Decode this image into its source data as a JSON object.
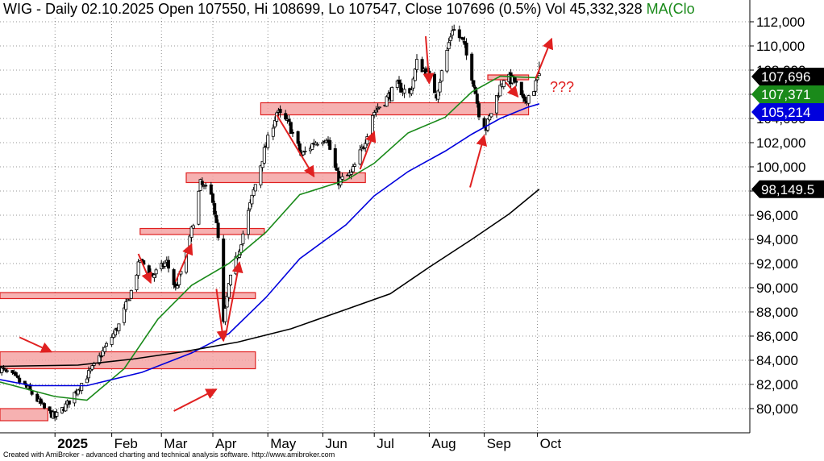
{
  "header": {
    "symbol": "WIG",
    "info": "- Daily 02.10.2025 Open 107550, Hi 108699, Lo 107547, Close 107696 (0.5%) Vol 45,332,328",
    "ma_label": "MA(Clo"
  },
  "footer": {
    "credit": "Created with AmiBroker - advanced charting and technical analysis software. http://www.amibroker.com"
  },
  "colors": {
    "ma_green": "#1a8a1a",
    "ma_blue": "#0000dd",
    "ma_black": "#000000",
    "zone_fill": "#f5a3a3",
    "zone_edge": "#e02020",
    "arrow": "#e02020"
  },
  "chart_data": {
    "type": "candlestick",
    "title": "WIG - Daily 02.10.2025",
    "ylim": [
      78000,
      113000
    ],
    "grid": true,
    "y_ticks": [
      "112,000",
      "110,000",
      "108,000",
      "106,000",
      "104,000",
      "102,000",
      "100,000",
      "98,000",
      "96,000",
      "94,000",
      "92,000",
      "90,000",
      "88,000",
      "86,000",
      "84,000",
      "82,000",
      "80,000"
    ],
    "x_ticks": [
      {
        "label": "2025",
        "date": "2025-01-02",
        "bold": true
      },
      {
        "label": "Feb",
        "date": "2025-02-03"
      },
      {
        "label": "Mar",
        "date": "2025-03-03"
      },
      {
        "label": "Apr",
        "date": "2025-04-01"
      },
      {
        "label": "May",
        "date": "2025-05-02"
      },
      {
        "label": "Jun",
        "date": "2025-06-02"
      },
      {
        "label": "Jul",
        "date": "2025-07-01"
      },
      {
        "label": "Aug",
        "date": "2025-08-01"
      },
      {
        "label": "Sep",
        "date": "2025-09-01"
      },
      {
        "label": "Oct",
        "date": "2025-10-01"
      }
    ],
    "last_bar": {
      "date": "2025-10-02",
      "open": 107550,
      "high": 108699,
      "low": 107547,
      "close": 107696,
      "change_pct": 0.5,
      "volume": 45332328
    },
    "price_path": [
      [
        "2024-12-02",
        83300
      ],
      [
        "2024-12-10",
        82600
      ],
      [
        "2024-12-18",
        81600
      ],
      [
        "2024-12-27",
        80000
      ],
      [
        "2025-01-02",
        79300
      ],
      [
        "2025-01-09",
        80400
      ],
      [
        "2025-01-16",
        81900
      ],
      [
        "2025-01-24",
        83500
      ],
      [
        "2025-01-31",
        85200
      ],
      [
        "2025-02-07",
        86900
      ],
      [
        "2025-02-14",
        89700
      ],
      [
        "2025-02-19",
        92300
      ],
      [
        "2025-02-26",
        91000
      ],
      [
        "2025-03-06",
        92100
      ],
      [
        "2025-03-11",
        89900
      ],
      [
        "2025-03-18",
        93200
      ],
      [
        "2025-03-25",
        98600
      ],
      [
        "2025-04-01",
        97400
      ],
      [
        "2025-04-04",
        94000
      ],
      [
        "2025-04-07",
        87000
      ],
      [
        "2025-04-10",
        90200
      ],
      [
        "2025-04-16",
        93300
      ],
      [
        "2025-04-24",
        98000
      ],
      [
        "2025-04-30",
        101300
      ],
      [
        "2025-05-07",
        104500
      ],
      [
        "2025-05-14",
        103500
      ],
      [
        "2025-05-21",
        100900
      ],
      [
        "2025-05-28",
        102000
      ],
      [
        "2025-06-04",
        102500
      ],
      [
        "2025-06-11",
        98800
      ],
      [
        "2025-06-18",
        99400
      ],
      [
        "2025-06-25",
        101800
      ],
      [
        "2025-06-30",
        104400
      ],
      [
        "2025-07-07",
        105500
      ],
      [
        "2025-07-14",
        106700
      ],
      [
        "2025-07-21",
        106000
      ],
      [
        "2025-07-25",
        108600
      ],
      [
        "2025-07-30",
        107900
      ],
      [
        "2025-08-05",
        106000
      ],
      [
        "2025-08-11",
        109600
      ],
      [
        "2025-08-14",
        111500
      ],
      [
        "2025-08-20",
        110300
      ],
      [
        "2025-08-26",
        107000
      ],
      [
        "2025-08-29",
        104500
      ],
      [
        "2025-09-02",
        103200
      ],
      [
        "2025-09-08",
        105800
      ],
      [
        "2025-09-12",
        107400
      ],
      [
        "2025-09-18",
        107100
      ],
      [
        "2025-09-23",
        105300
      ],
      [
        "2025-09-29",
        106500
      ],
      [
        "2025-10-02",
        107696
      ]
    ],
    "series": [
      {
        "name": "MA",
        "color": "#1a8a1a",
        "last_value": 107371,
        "points": [
          [
            "2024-12-02",
            82200
          ],
          [
            "2025-01-02",
            81000
          ],
          [
            "2025-01-20",
            80700
          ],
          [
            "2025-02-10",
            83300
          ],
          [
            "2025-03-01",
            87400
          ],
          [
            "2025-03-20",
            90200
          ],
          [
            "2025-04-10",
            92000
          ],
          [
            "2025-05-01",
            94600
          ],
          [
            "2025-05-20",
            97700
          ],
          [
            "2025-06-15",
            98900
          ],
          [
            "2025-07-01",
            100300
          ],
          [
            "2025-07-20",
            102800
          ],
          [
            "2025-08-10",
            104100
          ],
          [
            "2025-08-25",
            106200
          ],
          [
            "2025-09-10",
            107500
          ],
          [
            "2025-09-25",
            107400
          ],
          [
            "2025-10-02",
            107371
          ]
        ]
      },
      {
        "name": "MA",
        "color": "#0000dd",
        "last_value": 105214,
        "points": [
          [
            "2024-12-02",
            82400
          ],
          [
            "2024-12-20",
            81900
          ],
          [
            "2025-01-20",
            81900
          ],
          [
            "2025-02-20",
            83000
          ],
          [
            "2025-03-20",
            84600
          ],
          [
            "2025-04-10",
            86200
          ],
          [
            "2025-05-01",
            89200
          ],
          [
            "2025-05-20",
            92400
          ],
          [
            "2025-06-15",
            95200
          ],
          [
            "2025-07-01",
            97600
          ],
          [
            "2025-07-20",
            99600
          ],
          [
            "2025-08-10",
            101300
          ],
          [
            "2025-08-25",
            102700
          ],
          [
            "2025-09-10",
            104000
          ],
          [
            "2025-09-25",
            104900
          ],
          [
            "2025-10-02",
            105214
          ]
        ]
      },
      {
        "name": "MA",
        "color": "#000000",
        "last_value": 98149.5,
        "points": [
          [
            "2024-12-02",
            83500
          ],
          [
            "2025-01-15",
            83600
          ],
          [
            "2025-02-15",
            84100
          ],
          [
            "2025-03-15",
            84700
          ],
          [
            "2025-04-15",
            85500
          ],
          [
            "2025-05-15",
            86600
          ],
          [
            "2025-06-15",
            88200
          ],
          [
            "2025-07-10",
            89500
          ],
          [
            "2025-08-01",
            91700
          ],
          [
            "2025-08-25",
            94000
          ],
          [
            "2025-09-15",
            96100
          ],
          [
            "2025-10-02",
            98149.5
          ]
        ]
      }
    ],
    "price_tags": [
      {
        "label": "107,696",
        "value": 107696,
        "style": "black"
      },
      {
        "label": "107,371",
        "value": 107371,
        "style": "green"
      },
      {
        "label": "105,214",
        "value": 105214,
        "style": "blue"
      },
      {
        "label": "98,149.5",
        "value": 98149.5,
        "style": "black"
      }
    ],
    "zones": [
      {
        "from": "2024-12-02",
        "to": "2024-12-29",
        "low": 79000,
        "high": 80000
      },
      {
        "from": "2024-12-02",
        "to": "2025-04-25",
        "low": 83300,
        "high": 84700
      },
      {
        "from": "2024-12-02",
        "to": "2025-04-25",
        "low": 89100,
        "high": 89600
      },
      {
        "from": "2025-02-19",
        "to": "2025-04-30",
        "low": 94400,
        "high": 94900
      },
      {
        "from": "2025-03-17",
        "to": "2025-06-26",
        "low": 98700,
        "high": 99500
      },
      {
        "from": "2025-04-28",
        "to": "2025-09-26",
        "low": 104300,
        "high": 105300
      },
      {
        "from": "2025-09-03",
        "to": "2025-09-26",
        "low": 107200,
        "high": 107600
      }
    ],
    "arrows": [
      {
        "x1": "2024-12-13",
        "y1": 85900,
        "x2": "2024-12-31",
        "y2": 84700
      },
      {
        "x1": "2025-03-10",
        "y1": 79800,
        "x2": "2025-04-03",
        "y2": 81600
      },
      {
        "x1": "2025-02-18",
        "y1": 92800,
        "x2": "2025-02-25",
        "y2": 90400
      },
      {
        "x1": "2025-03-11",
        "y1": 90500,
        "x2": "2025-03-20",
        "y2": 93600
      },
      {
        "x1": "2025-04-03",
        "y1": 89900,
        "x2": "2025-04-07",
        "y2": 85600
      },
      {
        "x1": "2025-04-08",
        "y1": 85900,
        "x2": "2025-04-16",
        "y2": 92100
      },
      {
        "x1": "2025-05-07",
        "y1": 104300,
        "x2": "2025-05-28",
        "y2": 99200
      },
      {
        "x1": "2025-06-23",
        "y1": 99800,
        "x2": "2025-07-01",
        "y2": 102900
      },
      {
        "x1": "2025-07-30",
        "y1": 110800,
        "x2": "2025-08-01",
        "y2": 106900
      },
      {
        "x1": "2025-08-24",
        "y1": 98300,
        "x2": "2025-09-01",
        "y2": 102600
      },
      {
        "x1": "2025-09-13",
        "y1": 107000,
        "x2": "2025-09-20",
        "y2": 105800
      },
      {
        "x1": "2025-09-30",
        "y1": 107300,
        "x2": "2025-10-09",
        "y2": 110600
      }
    ],
    "annotations": [
      {
        "text": "???",
        "x": "2025-10-08",
        "y": 106200
      }
    ]
  }
}
